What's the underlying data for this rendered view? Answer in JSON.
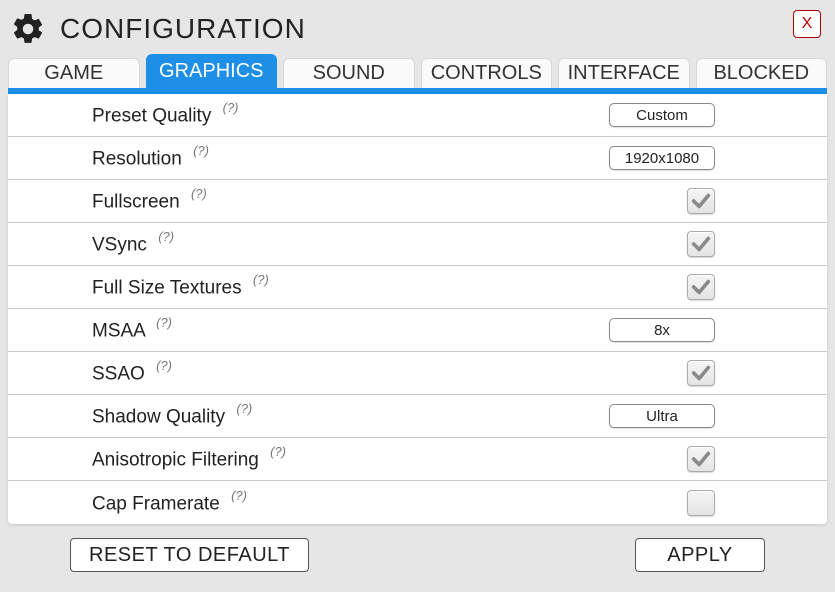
{
  "window": {
    "title": "CONFIGURATION",
    "close_label": "X"
  },
  "colors": {
    "accent": "#1d8fe6",
    "background": "#e6e6e6",
    "panel": "#ffffff",
    "divider": "#c8c8c8",
    "close_border": "#b00000",
    "close_text": "#c00000"
  },
  "tabs": [
    {
      "label": "GAME",
      "active": false
    },
    {
      "label": "GRAPHICS",
      "active": true
    },
    {
      "label": "SOUND",
      "active": false
    },
    {
      "label": "CONTROLS",
      "active": false
    },
    {
      "label": "INTERFACE",
      "active": false
    },
    {
      "label": "BLOCKED",
      "active": false
    }
  ],
  "help_marker": "(?)",
  "settings": [
    {
      "key": "preset_quality",
      "label": "Preset Quality",
      "type": "dropdown",
      "value": "Custom"
    },
    {
      "key": "resolution",
      "label": "Resolution",
      "type": "dropdown",
      "value": "1920x1080"
    },
    {
      "key": "fullscreen",
      "label": "Fullscreen",
      "type": "checkbox",
      "checked": true
    },
    {
      "key": "vsync",
      "label": "VSync",
      "type": "checkbox",
      "checked": true
    },
    {
      "key": "full_size_textures",
      "label": "Full Size Textures",
      "type": "checkbox",
      "checked": true
    },
    {
      "key": "msaa",
      "label": "MSAA",
      "type": "dropdown",
      "value": "8x"
    },
    {
      "key": "ssao",
      "label": "SSAO",
      "type": "checkbox",
      "checked": true
    },
    {
      "key": "shadow_quality",
      "label": "Shadow Quality",
      "type": "dropdown",
      "value": "Ultra"
    },
    {
      "key": "anisotropic_filtering",
      "label": "Anisotropic Filtering",
      "type": "checkbox",
      "checked": true
    },
    {
      "key": "cap_framerate",
      "label": "Cap Framerate",
      "type": "checkbox",
      "checked": false
    }
  ],
  "footer": {
    "reset_label": "RESET TO DEFAULT",
    "apply_label": "APPLY"
  }
}
